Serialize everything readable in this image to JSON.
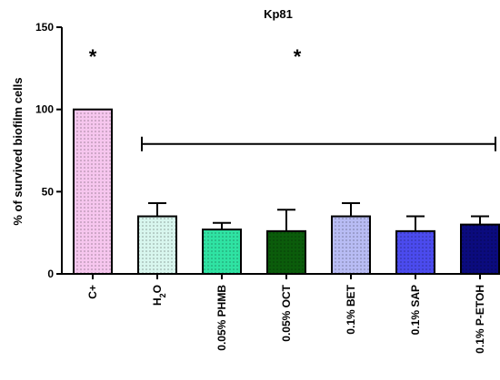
{
  "chart_data": {
    "type": "bar",
    "title": "Kp81",
    "ylabel": "% of survived biofilm cells",
    "xlabel": "",
    "ylim": [
      0,
      150
    ],
    "yticks": [
      0,
      50,
      100,
      150
    ],
    "grid": false,
    "categories": [
      {
        "pre": "C+"
      },
      {
        "pre": "H",
        "sub": "2",
        "post": "O"
      },
      {
        "pre": "0.05% PHMB"
      },
      {
        "pre": "0.05% OCT"
      },
      {
        "pre": "0.1% BET"
      },
      {
        "pre": "0.1% SAP"
      },
      {
        "pre": "0.1% P-ETOH"
      }
    ],
    "values": [
      100,
      35,
      27,
      26,
      35,
      26,
      30
    ],
    "error_upper": [
      0,
      43,
      31,
      39,
      43,
      35,
      35
    ],
    "colors": [
      "#f6c6ee",
      "#d8f6ee",
      "#2fe3a3",
      "#0b5c0b",
      "#b8bcf4",
      "#4b4bee",
      "#0b0b7e"
    ],
    "annotations": [
      {
        "text": "*",
        "target": "C+"
      },
      {
        "text": "*",
        "target": "bracket"
      }
    ],
    "bracket": {
      "from": "H2O",
      "to": "0.1% P-ETOH",
      "y_value": 79
    }
  }
}
